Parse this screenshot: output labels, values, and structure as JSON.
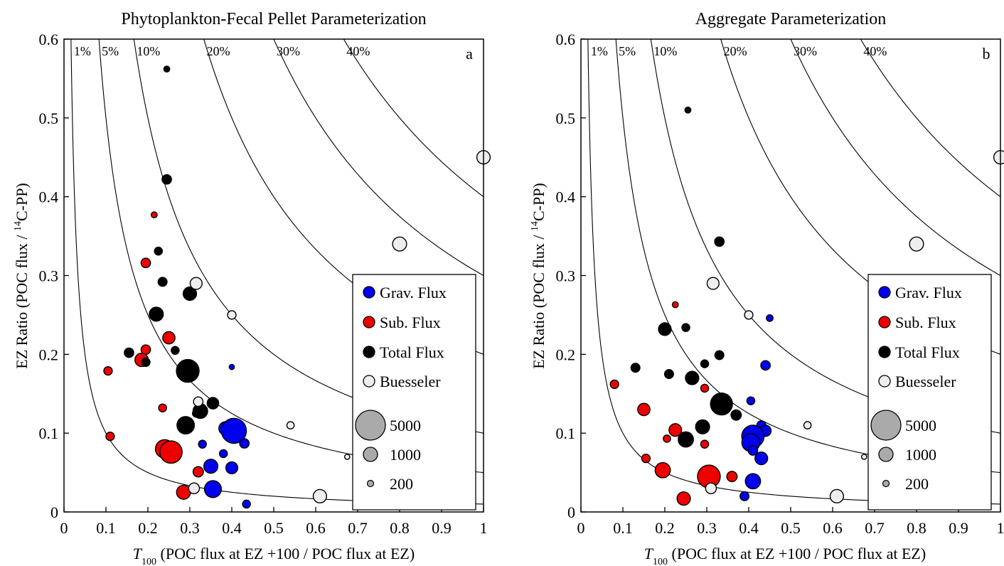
{
  "chart_data": [
    {
      "type": "scatter",
      "title": "Phytoplankton-Fecal Pellet Parameterization",
      "panel_label": "a",
      "xlabel_italic": "T",
      "xlabel_sub": "100",
      "xlabel_rest": " (POC flux at EZ +100 / POC flux at EZ)",
      "ylabel_main": "EZ Ratio (POC flux / ",
      "ylabel_sup": "14",
      "ylabel_end": "C-PP)",
      "xlim": [
        0,
        1
      ],
      "ylim": [
        0,
        0.6
      ],
      "x_ticks": [
        "0",
        "0.1",
        "0.2",
        "0.3",
        "0.4",
        "0.5",
        "0.6",
        "0.7",
        "0.8",
        "0.9",
        "1"
      ],
      "y_ticks": [
        "0",
        "0.1",
        "0.2",
        "0.3",
        "0.4",
        "0.5",
        "0.6"
      ],
      "grid": false,
      "contours": {
        "levels": [
          0.01,
          0.05,
          0.1,
          0.2,
          0.3,
          0.4
        ],
        "labels": [
          "1%",
          "5%",
          "10%",
          "20%",
          "30%",
          "40%"
        ]
      },
      "legend": {
        "placement": "right",
        "entries": [
          {
            "name": "Grav. Flux",
            "color": "#0000ee"
          },
          {
            "name": "Sub. Flux",
            "color": "#ee0000"
          },
          {
            "name": "Total Flux",
            "color": "#000000"
          },
          {
            "name": "Buesseler",
            "color": "#eeeeee"
          }
        ],
        "sizes": [
          {
            "label": "5000",
            "value": 5000
          },
          {
            "label": "1000",
            "value": 1000
          },
          {
            "label": "200",
            "value": 200
          }
        ]
      },
      "series": [
        {
          "name": "Grav. Flux",
          "color": "#0000ee",
          "points": [
            {
              "x": 0.4,
              "y": 0.184,
              "size": 150
            },
            {
              "x": 0.385,
              "y": 0.106,
              "size": 1000
            },
            {
              "x": 0.405,
              "y": 0.103,
              "size": 3500
            },
            {
              "x": 0.43,
              "y": 0.087,
              "size": 500
            },
            {
              "x": 0.33,
              "y": 0.086,
              "size": 350
            },
            {
              "x": 0.38,
              "y": 0.074,
              "size": 350
            },
            {
              "x": 0.35,
              "y": 0.058,
              "size": 1100
            },
            {
              "x": 0.4,
              "y": 0.056,
              "size": 800
            },
            {
              "x": 0.355,
              "y": 0.029,
              "size": 1600
            },
            {
              "x": 0.435,
              "y": 0.01,
              "size": 350
            },
            {
              "x": 0.315,
              "y": 0.125,
              "size": 300
            }
          ]
        },
        {
          "name": "Sub. Flux",
          "color": "#ee0000",
          "points": [
            {
              "x": 0.215,
              "y": 0.377,
              "size": 200
            },
            {
              "x": 0.195,
              "y": 0.316,
              "size": 500
            },
            {
              "x": 0.25,
              "y": 0.221,
              "size": 850
            },
            {
              "x": 0.195,
              "y": 0.206,
              "size": 500
            },
            {
              "x": 0.185,
              "y": 0.193,
              "size": 1000
            },
            {
              "x": 0.105,
              "y": 0.179,
              "size": 400
            },
            {
              "x": 0.235,
              "y": 0.132,
              "size": 350
            },
            {
              "x": 0.11,
              "y": 0.096,
              "size": 400
            },
            {
              "x": 0.24,
              "y": 0.08,
              "size": 1900
            },
            {
              "x": 0.255,
              "y": 0.076,
              "size": 2800
            },
            {
              "x": 0.32,
              "y": 0.051,
              "size": 600
            },
            {
              "x": 0.285,
              "y": 0.025,
              "size": 1100
            }
          ]
        },
        {
          "name": "Total Flux",
          "color": "#000000",
          "points": [
            {
              "x": 0.245,
              "y": 0.562,
              "size": 200
            },
            {
              "x": 0.245,
              "y": 0.422,
              "size": 500
            },
            {
              "x": 0.225,
              "y": 0.331,
              "size": 350
            },
            {
              "x": 0.235,
              "y": 0.292,
              "size": 450
            },
            {
              "x": 0.3,
              "y": 0.277,
              "size": 1000
            },
            {
              "x": 0.22,
              "y": 0.251,
              "size": 1100
            },
            {
              "x": 0.265,
              "y": 0.205,
              "size": 350
            },
            {
              "x": 0.155,
              "y": 0.202,
              "size": 500
            },
            {
              "x": 0.195,
              "y": 0.19,
              "size": 400
            },
            {
              "x": 0.295,
              "y": 0.179,
              "size": 2900
            },
            {
              "x": 0.355,
              "y": 0.138,
              "size": 750
            },
            {
              "x": 0.325,
              "y": 0.128,
              "size": 1200
            },
            {
              "x": 0.29,
              "y": 0.11,
              "size": 1700
            }
          ]
        },
        {
          "name": "Buesseler",
          "color": "#eeeeee",
          "points": [
            {
              "x": 0.315,
              "y": 0.29,
              "size": 800
            },
            {
              "x": 0.4,
              "y": 0.25,
              "size": 400
            },
            {
              "x": 0.32,
              "y": 0.14,
              "size": 500
            },
            {
              "x": 0.54,
              "y": 0.11,
              "size": 300
            },
            {
              "x": 0.675,
              "y": 0.07,
              "size": 150
            },
            {
              "x": 0.31,
              "y": 0.03,
              "size": 650
            },
            {
              "x": 0.61,
              "y": 0.02,
              "size": 1000
            },
            {
              "x": 0.8,
              "y": 0.34,
              "size": 1100
            },
            {
              "x": 1.0,
              "y": 0.45,
              "size": 1000
            }
          ]
        }
      ]
    },
    {
      "type": "scatter",
      "title": "Aggregate Parameterization",
      "panel_label": "b",
      "xlabel_italic": "T",
      "xlabel_sub": "100",
      "xlabel_rest": " (POC flux at EZ +100 / POC flux at EZ)",
      "ylabel_main": "EZ Ratio (POC flux / ",
      "ylabel_sup": "14",
      "ylabel_end": "C-PP)",
      "xlim": [
        0,
        1
      ],
      "ylim": [
        0,
        0.6
      ],
      "x_ticks": [
        "0",
        "0.1",
        "0.2",
        "0.3",
        "0.4",
        "0.5",
        "0.6",
        "0.7",
        "0.8",
        "0.9",
        "1"
      ],
      "y_ticks": [
        "0",
        "0.1",
        "0.2",
        "0.3",
        "0.4",
        "0.5",
        "0.6"
      ],
      "grid": false,
      "contours": {
        "levels": [
          0.01,
          0.05,
          0.1,
          0.2,
          0.3,
          0.4
        ],
        "labels": [
          "1%",
          "5%",
          "10%",
          "20%",
          "30%",
          "40%"
        ]
      },
      "legend": {
        "placement": "right",
        "entries": [
          {
            "name": "Grav. Flux",
            "color": "#0000ee"
          },
          {
            "name": "Sub. Flux",
            "color": "#ee0000"
          },
          {
            "name": "Total Flux",
            "color": "#000000"
          },
          {
            "name": "Buesseler",
            "color": "#eeeeee"
          }
        ],
        "sizes": [
          {
            "label": "5000",
            "value": 5000
          },
          {
            "label": "1000",
            "value": 1000
          },
          {
            "label": "200",
            "value": 200
          }
        ]
      },
      "series": [
        {
          "name": "Grav. Flux",
          "color": "#0000ee",
          "points": [
            {
              "x": 0.45,
              "y": 0.246,
              "size": 250
            },
            {
              "x": 0.44,
              "y": 0.186,
              "size": 500
            },
            {
              "x": 0.405,
              "y": 0.141,
              "size": 350
            },
            {
              "x": 0.43,
              "y": 0.11,
              "size": 450
            },
            {
              "x": 0.44,
              "y": 0.103,
              "size": 700
            },
            {
              "x": 0.41,
              "y": 0.096,
              "size": 2800
            },
            {
              "x": 0.405,
              "y": 0.088,
              "size": 1800
            },
            {
              "x": 0.41,
              "y": 0.078,
              "size": 500
            },
            {
              "x": 0.43,
              "y": 0.068,
              "size": 900
            },
            {
              "x": 0.41,
              "y": 0.039,
              "size": 1300
            },
            {
              "x": 0.39,
              "y": 0.02,
              "size": 450
            }
          ]
        },
        {
          "name": "Sub. Flux",
          "color": "#ee0000",
          "points": [
            {
              "x": 0.225,
              "y": 0.263,
              "size": 200
            },
            {
              "x": 0.295,
              "y": 0.157,
              "size": 350
            },
            {
              "x": 0.08,
              "y": 0.162,
              "size": 400
            },
            {
              "x": 0.15,
              "y": 0.13,
              "size": 850
            },
            {
              "x": 0.225,
              "y": 0.104,
              "size": 900
            },
            {
              "x": 0.205,
              "y": 0.093,
              "size": 300
            },
            {
              "x": 0.25,
              "y": 0.088,
              "size": 350
            },
            {
              "x": 0.295,
              "y": 0.086,
              "size": 350
            },
            {
              "x": 0.155,
              "y": 0.068,
              "size": 400
            },
            {
              "x": 0.195,
              "y": 0.053,
              "size": 1300
            },
            {
              "x": 0.305,
              "y": 0.045,
              "size": 2900
            },
            {
              "x": 0.36,
              "y": 0.045,
              "size": 600
            },
            {
              "x": 0.245,
              "y": 0.017,
              "size": 1000
            }
          ]
        },
        {
          "name": "Total Flux",
          "color": "#000000",
          "points": [
            {
              "x": 0.255,
              "y": 0.51,
              "size": 200
            },
            {
              "x": 0.33,
              "y": 0.343,
              "size": 500
            },
            {
              "x": 0.2,
              "y": 0.232,
              "size": 900
            },
            {
              "x": 0.25,
              "y": 0.234,
              "size": 350
            },
            {
              "x": 0.13,
              "y": 0.183,
              "size": 450
            },
            {
              "x": 0.21,
              "y": 0.175,
              "size": 450
            },
            {
              "x": 0.33,
              "y": 0.199,
              "size": 450
            },
            {
              "x": 0.295,
              "y": 0.188,
              "size": 350
            },
            {
              "x": 0.265,
              "y": 0.17,
              "size": 1000
            },
            {
              "x": 0.335,
              "y": 0.137,
              "size": 2700
            },
            {
              "x": 0.37,
              "y": 0.123,
              "size": 600
            },
            {
              "x": 0.29,
              "y": 0.108,
              "size": 1100
            },
            {
              "x": 0.25,
              "y": 0.092,
              "size": 1300
            }
          ]
        },
        {
          "name": "Buesseler",
          "color": "#eeeeee",
          "points": [
            {
              "x": 0.315,
              "y": 0.29,
              "size": 800
            },
            {
              "x": 0.4,
              "y": 0.25,
              "size": 400
            },
            {
              "x": 0.54,
              "y": 0.11,
              "size": 300
            },
            {
              "x": 0.675,
              "y": 0.07,
              "size": 150
            },
            {
              "x": 0.31,
              "y": 0.03,
              "size": 650
            },
            {
              "x": 0.61,
              "y": 0.02,
              "size": 1000
            },
            {
              "x": 0.8,
              "y": 0.34,
              "size": 1100
            },
            {
              "x": 1.0,
              "y": 0.45,
              "size": 1000
            }
          ]
        }
      ]
    }
  ]
}
